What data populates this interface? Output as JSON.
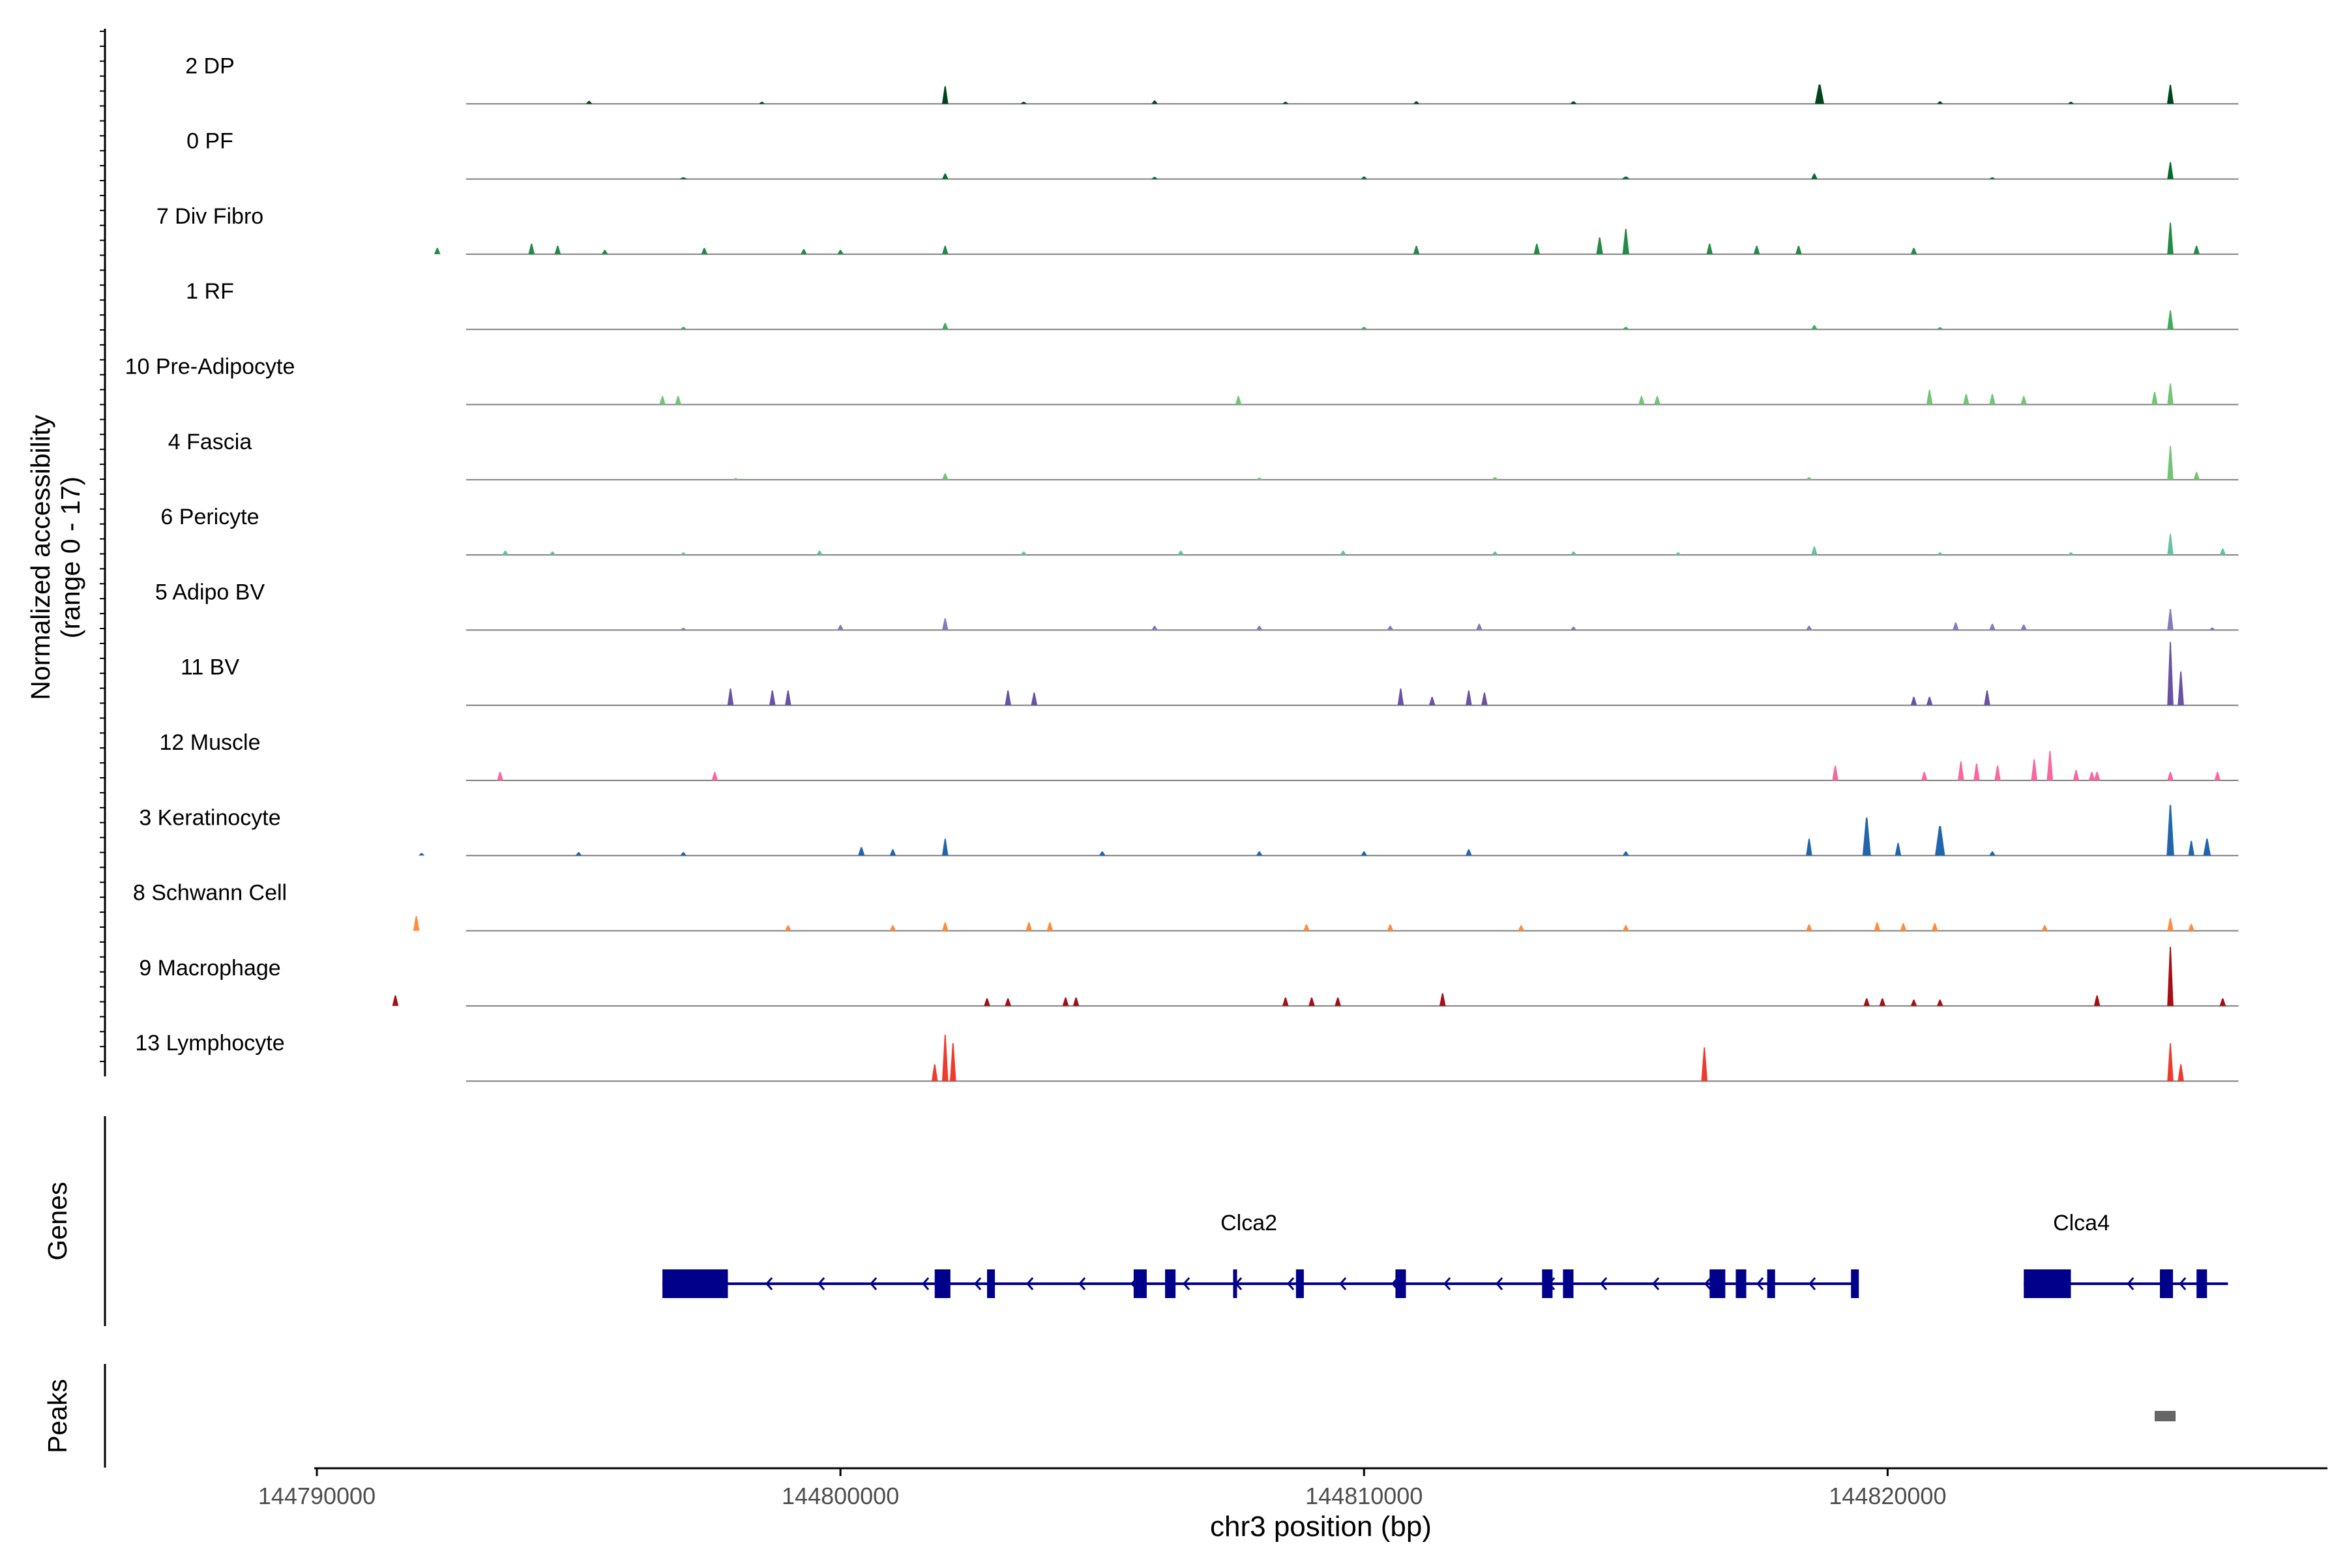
{
  "chart_data": {
    "type": "coverage",
    "title": "",
    "ylabel_line1": "Normalized accessibility",
    "ylabel_line2": "(range 0 - 17)",
    "yrange": [
      0,
      17
    ],
    "xlabel": "chr3 position (bp)",
    "xlim": [
      144789950,
      144828400
    ],
    "xticks": [
      144790000,
      144800000,
      144810000,
      144820000
    ],
    "xtick_labels": [
      "144790000",
      "144800000",
      "144810000",
      "144820000"
    ],
    "tracks": [
      {
        "name": "2 DP",
        "color": "#00441b",
        "peaks": [
          [
            144802000,
            4.2,
            70
          ],
          [
            144818700,
            4.6,
            110
          ],
          [
            144825400,
            4.5,
            80
          ],
          [
            144795200,
            0.7,
            60
          ],
          [
            144806000,
            0.8,
            40
          ],
          [
            144811000,
            0.6,
            60
          ],
          [
            144814000,
            0.6,
            80
          ],
          [
            144821000,
            0.6,
            60
          ],
          [
            144798500,
            0.5,
            60
          ],
          [
            144803500,
            0.5,
            80
          ],
          [
            144808500,
            0.5,
            60
          ],
          [
            144823500,
            0.5,
            60
          ]
        ]
      },
      {
        "name": "0 PF",
        "color": "#006d2c",
        "peaks": [
          [
            144825400,
            4.0,
            70
          ],
          [
            144802000,
            1.3,
            50
          ],
          [
            144818600,
            1.3,
            60
          ],
          [
            144815000,
            0.6,
            100
          ],
          [
            144810000,
            0.6,
            80
          ],
          [
            144806000,
            0.5,
            80
          ],
          [
            144797000,
            0.4,
            100
          ],
          [
            144822000,
            0.4,
            80
          ]
        ]
      },
      {
        "name": "7 Div Fibro",
        "color": "#238b45",
        "peaks": [
          [
            144825400,
            7.5,
            60
          ],
          [
            144815000,
            6.0,
            80
          ],
          [
            144814500,
            4.0,
            80
          ],
          [
            144813300,
            2.5,
            60
          ],
          [
            144811000,
            2.0,
            60
          ],
          [
            144794100,
            2.5,
            40
          ],
          [
            144794600,
            2.0,
            40
          ],
          [
            144792300,
            1.5,
            40
          ],
          [
            144797400,
            1.5,
            40
          ],
          [
            144802000,
            2.0,
            40
          ],
          [
            144816600,
            2.5,
            40
          ],
          [
            144817500,
            2.0,
            40
          ],
          [
            144818300,
            2.0,
            40
          ],
          [
            144820500,
            1.5,
            40
          ],
          [
            144825900,
            2.0,
            40
          ],
          [
            144799300,
            1.2,
            40
          ],
          [
            144800000,
            1.0,
            40
          ],
          [
            144795500,
            1.0,
            40
          ]
        ]
      },
      {
        "name": "1 RF",
        "color": "#41ab5d",
        "peaks": [
          [
            144825400,
            4.5,
            70
          ],
          [
            144802000,
            1.5,
            50
          ],
          [
            144818600,
            1.0,
            50
          ],
          [
            144797000,
            0.6,
            80
          ],
          [
            144810000,
            0.6,
            80
          ],
          [
            144815000,
            0.6,
            80
          ],
          [
            144821000,
            0.5,
            80
          ]
        ]
      },
      {
        "name": "10 Pre-Adipocyte",
        "color": "#74c476",
        "peaks": [
          [
            144825400,
            5.0,
            40
          ],
          [
            144820800,
            3.5,
            40
          ],
          [
            144821500,
            2.5,
            40
          ],
          [
            144822000,
            2.5,
            40
          ],
          [
            144825100,
            3.0,
            40
          ],
          [
            144796600,
            2.0,
            40
          ],
          [
            144796900,
            2.0,
            40
          ],
          [
            144807600,
            2.0,
            40
          ],
          [
            144815300,
            2.0,
            40
          ],
          [
            144815600,
            2.0,
            40
          ],
          [
            144822600,
            2.0,
            40
          ]
        ]
      },
      {
        "name": "4 Fascia",
        "color": "#74c476",
        "peaks": [
          [
            144825400,
            8.0,
            60
          ],
          [
            144802000,
            1.5,
            50
          ],
          [
            144825900,
            1.8,
            40
          ],
          [
            144812500,
            0.6,
            80
          ],
          [
            144818500,
            0.6,
            60
          ],
          [
            144808000,
            0.5,
            60
          ],
          [
            144798000,
            0.4,
            60
          ]
        ]
      },
      {
        "name": "6 Pericyte",
        "color": "#66c2a4",
        "peaks": [
          [
            144825400,
            5.0,
            60
          ],
          [
            144818600,
            2.0,
            50
          ],
          [
            144826400,
            1.5,
            40
          ],
          [
            144793600,
            1.0,
            40
          ],
          [
            144794500,
            0.8,
            40
          ],
          [
            144797000,
            0.6,
            60
          ],
          [
            144799600,
            1.0,
            40
          ],
          [
            144803500,
            0.8,
            40
          ],
          [
            144806500,
            1.0,
            40
          ],
          [
            144809600,
            1.0,
            40
          ],
          [
            144812500,
            0.8,
            40
          ],
          [
            144814000,
            0.8,
            40
          ],
          [
            144816000,
            0.6,
            40
          ],
          [
            144821000,
            0.6,
            40
          ],
          [
            144823500,
            0.6,
            40
          ]
        ]
      },
      {
        "name": "5 Adipo BV",
        "color": "#807dba",
        "peaks": [
          [
            144825400,
            5.0,
            70
          ],
          [
            144802000,
            2.8,
            50
          ],
          [
            144810500,
            1.0,
            60
          ],
          [
            144812200,
            1.5,
            60
          ],
          [
            144821300,
            1.8,
            40
          ],
          [
            144822000,
            1.5,
            40
          ],
          [
            144822600,
            1.3,
            40
          ],
          [
            144800000,
            1.2,
            40
          ],
          [
            144806000,
            1.0,
            40
          ],
          [
            144808000,
            1.0,
            40
          ],
          [
            144814000,
            0.8,
            40
          ],
          [
            144818500,
            1.0,
            40
          ],
          [
            144826200,
            0.6,
            40
          ],
          [
            144797000,
            0.5,
            60
          ]
        ]
      },
      {
        "name": "11 BV",
        "color": "#6a51a3",
        "peaks": [
          [
            144825400,
            15.0,
            60
          ],
          [
            144825600,
            8.0,
            40
          ],
          [
            144797900,
            4.0,
            40
          ],
          [
            144798700,
            3.5,
            40
          ],
          [
            144799000,
            3.5,
            40
          ],
          [
            144803200,
            3.5,
            40
          ],
          [
            144803700,
            3.0,
            40
          ],
          [
            144810700,
            4.0,
            40
          ],
          [
            144811300,
            2.0,
            40
          ],
          [
            144812000,
            3.5,
            40
          ],
          [
            144812300,
            3.0,
            40
          ],
          [
            144820500,
            2.0,
            40
          ],
          [
            144820800,
            2.0,
            40
          ],
          [
            144821900,
            3.5,
            40
          ]
        ]
      },
      {
        "name": "12 Muscle",
        "color": "#f768a1",
        "peaks": [
          [
            144823100,
            7.0,
            40
          ],
          [
            144822800,
            5.0,
            40
          ],
          [
            144821400,
            4.5,
            40
          ],
          [
            144821700,
            4.0,
            40
          ],
          [
            144822100,
            3.5,
            40
          ],
          [
            144819000,
            3.5,
            40
          ],
          [
            144823600,
            2.5,
            40
          ],
          [
            144823900,
            2.0,
            40
          ],
          [
            144824000,
            2.0,
            40
          ],
          [
            144825400,
            2.0,
            40
          ],
          [
            144826300,
            2.0,
            40
          ],
          [
            144793500,
            2.0,
            60
          ],
          [
            144797600,
            2.0,
            60
          ],
          [
            144820700,
            2.0,
            40
          ]
        ]
      },
      {
        "name": "3 Keratinocyte",
        "color": "#2166ac",
        "peaks": [
          [
            144825400,
            12.0,
            90
          ],
          [
            144819600,
            9.0,
            100
          ],
          [
            144821000,
            7.0,
            120
          ],
          [
            144818500,
            4.0,
            70
          ],
          [
            144826100,
            4.0,
            90
          ],
          [
            144825800,
            3.5,
            60
          ],
          [
            144820200,
            3.0,
            60
          ],
          [
            144802000,
            4.0,
            60
          ],
          [
            144800400,
            2.0,
            80
          ],
          [
            144801000,
            1.5,
            60
          ],
          [
            144812000,
            1.5,
            60
          ],
          [
            144805000,
            1.0,
            60
          ],
          [
            144808000,
            1.0,
            60
          ],
          [
            144810000,
            1.0,
            60
          ],
          [
            144815000,
            1.0,
            60
          ],
          [
            144822000,
            1.0,
            60
          ],
          [
            144795000,
            0.8,
            60
          ],
          [
            144797000,
            0.8,
            60
          ],
          [
            144792000,
            0.6,
            60
          ]
        ]
      },
      {
        "name": "8 Schwann Cell",
        "color": "#fd8d3c",
        "peaks": [
          [
            144791900,
            3.5,
            40
          ],
          [
            144802000,
            2.0,
            60
          ],
          [
            144803600,
            2.0,
            60
          ],
          [
            144804000,
            2.0,
            60
          ],
          [
            144819800,
            2.0,
            60
          ],
          [
            144820300,
            1.8,
            60
          ],
          [
            144820900,
            1.8,
            40
          ],
          [
            144825400,
            3.0,
            60
          ],
          [
            144825800,
            1.6,
            40
          ],
          [
            144799000,
            1.3,
            60
          ],
          [
            144801000,
            1.3,
            60
          ],
          [
            144808900,
            1.5,
            40
          ],
          [
            144810500,
            1.5,
            40
          ],
          [
            144813000,
            1.3,
            40
          ],
          [
            144815000,
            1.3,
            40
          ],
          [
            144818500,
            1.5,
            40
          ],
          [
            144823000,
            1.3,
            40
          ]
        ]
      },
      {
        "name": "9 Macrophage",
        "color": "#a50f15",
        "peaks": [
          [
            144825400,
            14.0,
            50
          ],
          [
            144811500,
            3.0,
            50
          ],
          [
            144791500,
            2.5,
            40
          ],
          [
            144824000,
            2.5,
            40
          ],
          [
            144826400,
            1.8,
            40
          ],
          [
            144802800,
            1.8,
            40
          ],
          [
            144803200,
            1.8,
            40
          ],
          [
            144804300,
            2.0,
            40
          ],
          [
            144804500,
            2.0,
            40
          ],
          [
            144808500,
            2.0,
            40
          ],
          [
            144809000,
            2.0,
            40
          ],
          [
            144809500,
            2.0,
            40
          ],
          [
            144819600,
            1.8,
            40
          ],
          [
            144819900,
            1.8,
            40
          ],
          [
            144820500,
            1.5,
            40
          ],
          [
            144821000,
            1.5,
            40
          ]
        ]
      },
      {
        "name": "13 Lymphocyte",
        "color": "#ef3b2c",
        "peaks": [
          [
            144802000,
            11.0,
            40
          ],
          [
            144802150,
            9.0,
            40
          ],
          [
            144801800,
            4.0,
            40
          ],
          [
            144816500,
            8.0,
            50
          ],
          [
            144825400,
            9.0,
            40
          ],
          [
            144825600,
            4.0,
            40
          ]
        ]
      }
    ],
    "genes_label": "Genes",
    "genes": [
      {
        "name": "Clca2",
        "start": 144796600,
        "end": 144819400,
        "strand": "-",
        "exons": [
          [
            144796600,
            144797850
          ],
          [
            144801800,
            144802100
          ],
          [
            144802800,
            144802950
          ],
          [
            144805600,
            144805850
          ],
          [
            144806200,
            144806400
          ],
          [
            144807500,
            144807560
          ],
          [
            144808700,
            144808850
          ],
          [
            144810600,
            144810800
          ],
          [
            144813400,
            144813600
          ],
          [
            144813800,
            144814000
          ],
          [
            144816600,
            144816900
          ],
          [
            144817100,
            144817300
          ],
          [
            144817700,
            144817850
          ],
          [
            144819300,
            144819450
          ]
        ]
      },
      {
        "name": "Clca4",
        "start": 144822600,
        "end": 144826500,
        "strand": "-",
        "exons": [
          [
            144822600,
            144823500
          ],
          [
            144825200,
            144825450
          ],
          [
            144825900,
            144826100
          ]
        ]
      }
    ],
    "peaks_label": "Peaks",
    "peak_regions": [
      [
        144825100,
        144825500
      ]
    ]
  }
}
